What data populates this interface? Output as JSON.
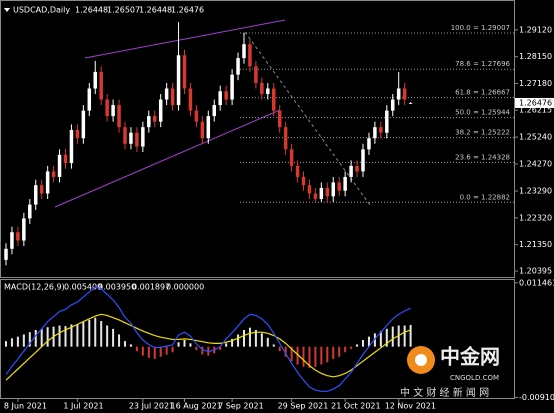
{
  "chart_data": [
    {
      "type": "candlestick",
      "symbol": "USDCAD,Daily",
      "categories": [
        null,
        null,
        "8 Jun 2021",
        null,
        null,
        null,
        null,
        null,
        null,
        null,
        null,
        null,
        "1 Jul 2021",
        null,
        null,
        null,
        null,
        null,
        null,
        null,
        null,
        null,
        null,
        "23 Jul 2021",
        null,
        null,
        null,
        null,
        null,
        null,
        "16 Aug 2021",
        null,
        null,
        null,
        null,
        null,
        null,
        null,
        "7 Sep 2021",
        null,
        null,
        null,
        null,
        null,
        null,
        null,
        null,
        null,
        "29 Sep 2021",
        null,
        null,
        null,
        null,
        null,
        null,
        null,
        null,
        "21 Oct 2021",
        null,
        null,
        null,
        null,
        null,
        null,
        null,
        null,
        "12 Nov 2021",
        null,
        null
      ],
      "open": [
        1.208,
        1.212,
        1.218,
        1.215,
        1.223,
        1.228,
        1.235,
        1.232,
        1.24,
        1.238,
        1.246,
        1.243,
        1.255,
        1.252,
        1.262,
        1.27,
        1.276,
        1.266,
        1.26,
        1.264,
        1.256,
        1.25,
        1.254,
        1.249,
        1.256,
        1.26,
        1.258,
        1.266,
        1.27,
        1.264,
        1.282,
        1.27,
        1.262,
        1.258,
        1.252,
        1.26,
        1.264,
        1.269,
        1.266,
        1.275,
        1.281,
        1.286,
        1.278,
        1.272,
        1.268,
        1.27,
        1.262,
        1.256,
        1.248,
        1.242,
        1.238,
        1.235,
        1.232,
        1.23,
        1.234,
        1.231,
        1.236,
        1.233,
        1.238,
        1.242,
        1.24,
        1.248,
        1.252,
        1.256,
        1.254,
        1.262,
        1.266,
        1.27,
        1.26448
      ],
      "high": [
        1.214,
        1.22,
        1.22,
        1.225,
        1.23,
        1.237,
        1.237,
        1.242,
        1.242,
        1.248,
        1.248,
        1.257,
        1.257,
        1.264,
        1.272,
        1.28,
        1.278,
        1.268,
        1.266,
        1.266,
        1.258,
        1.256,
        1.256,
        1.258,
        1.262,
        1.262,
        1.268,
        1.272,
        1.272,
        1.294,
        1.284,
        1.272,
        1.264,
        1.26,
        1.262,
        1.266,
        1.271,
        1.271,
        1.277,
        1.283,
        1.29007,
        1.288,
        1.28,
        1.274,
        1.272,
        1.272,
        1.264,
        1.258,
        1.25,
        1.244,
        1.24,
        1.237,
        1.234,
        1.236,
        1.236,
        1.238,
        1.238,
        1.24,
        1.244,
        1.244,
        1.25,
        1.254,
        1.258,
        1.258,
        1.264,
        1.268,
        1.276,
        1.272,
        1.26507
      ],
      "low": [
        1.206,
        1.21,
        1.213,
        1.213,
        1.221,
        1.226,
        1.23,
        1.23,
        1.236,
        1.236,
        1.241,
        1.241,
        1.25,
        1.25,
        1.26,
        1.268,
        1.264,
        1.258,
        1.258,
        1.254,
        1.248,
        1.248,
        1.247,
        1.247,
        1.254,
        1.256,
        1.256,
        1.264,
        1.262,
        1.262,
        1.268,
        1.26,
        1.256,
        1.25,
        1.25,
        1.258,
        1.262,
        1.264,
        1.264,
        1.273,
        1.279,
        1.276,
        1.27,
        1.266,
        1.266,
        1.26,
        1.254,
        1.246,
        1.24,
        1.236,
        1.233,
        1.23,
        1.229,
        1.229,
        1.22882,
        1.229,
        1.231,
        1.231,
        1.236,
        1.238,
        1.238,
        1.246,
        1.25,
        1.252,
        1.252,
        1.26,
        1.264,
        1.264,
        1.26448
      ],
      "close": [
        1.212,
        1.218,
        1.215,
        1.223,
        1.228,
        1.235,
        1.232,
        1.24,
        1.238,
        1.246,
        1.243,
        1.255,
        1.252,
        1.262,
        1.27,
        1.276,
        1.266,
        1.26,
        1.264,
        1.256,
        1.25,
        1.254,
        1.249,
        1.256,
        1.26,
        1.258,
        1.266,
        1.27,
        1.264,
        1.282,
        1.27,
        1.262,
        1.258,
        1.252,
        1.26,
        1.264,
        1.269,
        1.266,
        1.275,
        1.281,
        1.286,
        1.278,
        1.272,
        1.268,
        1.27,
        1.262,
        1.256,
        1.248,
        1.242,
        1.238,
        1.235,
        1.232,
        1.23,
        1.234,
        1.231,
        1.236,
        1.233,
        1.238,
        1.242,
        1.24,
        1.248,
        1.252,
        1.256,
        1.254,
        1.262,
        1.266,
        1.27,
        1.266,
        1.26476
      ],
      "up_color": "#ffffff",
      "down_color": "#d8392e",
      "ylim": [
        1.2018,
        1.3002
      ],
      "yticks": [
        {
          "value": 1.2912,
          "label": "1.29120"
        },
        {
          "value": 1.2815,
          "label": "1.28150"
        },
        {
          "value": 1.2718,
          "label": "1.27180"
        },
        {
          "value": 1.26215,
          "label": "1.26215"
        },
        {
          "value": 1.2524,
          "label": "1.25240"
        },
        {
          "value": 1.2427,
          "label": "1.24270"
        },
        {
          "value": 1.2329,
          "label": "1.23290"
        },
        {
          "value": 1.2232,
          "label": "1.22320"
        },
        {
          "value": 1.2135,
          "label": "1.21350"
        },
        {
          "value": 1.20395,
          "label": "1.20395"
        }
      ],
      "fib_levels": [
        {
          "value": 1.29007,
          "label": "100.0 = 1.29007"
        },
        {
          "value": 1.27696,
          "label": "78.6 = 1.27696"
        },
        {
          "value": 1.26667,
          "label": "61.8 = 1.26667"
        },
        {
          "value": 1.25944,
          "label": "50.0 = 1.25944"
        },
        {
          "value": 1.25222,
          "label": "38.2 = 1.25222"
        },
        {
          "value": 1.24328,
          "label": "23.6 = 1.24328"
        },
        {
          "value": 1.22882,
          "label": "0.0 = 1.22882"
        }
      ]
    },
    {
      "type": "macd",
      "title": "MACD(12,26,9)",
      "indicator_values": [
        {
          "value": 0.005409,
          "label": "0.005409"
        },
        {
          "value": 0.00395,
          "label": "0.003950"
        },
        {
          "value": 0.001897,
          "label": "0.001897"
        },
        {
          "value": 0,
          "label": "0.000000"
        }
      ],
      "ylim": [
        -0.0092,
        0.0116
      ],
      "yticks": [
        0.011461,
        -0.009103
      ],
      "positive_color": "#e6e6e6",
      "negative_color": "#d8392e",
      "series": [
        {
          "color": "#e6e6e6",
          "values": [
            0.001,
            0.0015,
            0.0018,
            0.0022,
            0.0026,
            0.003,
            0.0032,
            0.0035,
            0.0036,
            0.0038,
            0.0037,
            0.004,
            0.004,
            0.0044,
            0.0048,
            0.0052,
            0.0046,
            0.0038,
            0.0032,
            0.0022,
            0.001,
            0.0004,
            -0.0008,
            -0.0016,
            -0.002,
            -0.0022,
            -0.0018,
            -0.0014,
            -0.001,
            0.0008,
            0.0012,
            0.0006,
            -0.0006,
            -0.0014,
            -0.0016,
            -0.0012,
            -0.0006,
            0.0006,
            0.0014,
            0.0022,
            0.003,
            0.0034,
            0.003,
            0.0024,
            0.0016,
            0.0004,
            -0.0008,
            -0.0018,
            -0.0026,
            -0.0032,
            -0.0036,
            -0.0038,
            -0.0036,
            -0.0032,
            -0.0028,
            -0.0022,
            -0.0018,
            -0.001,
            -0.0004,
            0.0004,
            0.0012,
            0.0018,
            0.0024,
            0.0028,
            0.0032,
            0.0036,
            0.0038,
            0.0038,
            0.0039
          ]
        },
        {
          "color": "#f0e000",
          "values": [
            -0.006,
            -0.005,
            -0.004,
            -0.003,
            -0.002,
            -0.001,
            0,
            0.001,
            0.0018,
            0.0025,
            0.003,
            0.0035,
            0.004,
            0.0045,
            0.005,
            0.0055,
            0.0058,
            0.0056,
            0.0052,
            0.0048,
            0.0043,
            0.0038,
            0.0033,
            0.0028,
            0.0024,
            0.002,
            0.0017,
            0.0015,
            0.0013,
            0.0013,
            0.0014,
            0.0013,
            0.0011,
            0.0009,
            0.0007,
            0.0006,
            0.0006,
            0.0008,
            0.0011,
            0.0015,
            0.002,
            0.0024,
            0.0026,
            0.0026,
            0.0024,
            0.002,
            0.0014,
            0.0006,
            -0.0004,
            -0.0014,
            -0.0024,
            -0.0034,
            -0.0042,
            -0.0048,
            -0.0052,
            -0.0054,
            -0.0052,
            -0.0048,
            -0.0042,
            -0.0034,
            -0.0026,
            -0.0018,
            -0.001,
            -0.0002,
            0.0006,
            0.0014,
            0.002,
            0.0026,
            0.003
          ]
        },
        {
          "color": "#2f4fff",
          "values": [
            -0.005,
            -0.0035,
            -0.0022,
            -0.0008,
            0.0006,
            0.002,
            0.0032,
            0.0045,
            0.0054,
            0.0063,
            0.0067,
            0.0075,
            0.008,
            0.0089,
            0.0098,
            0.0107,
            0.0104,
            0.0094,
            0.0084,
            0.007,
            0.0053,
            0.0042,
            0.0025,
            0.0012,
            0.0004,
            -0.0002,
            -0.0001,
            0.0001,
            0.0003,
            0.0021,
            0.0026,
            0.0019,
            0.0005,
            -0.0005,
            -0.0009,
            -0.0006,
            0,
            0.0014,
            0.0025,
            0.0037,
            0.005,
            0.0058,
            0.0056,
            0.005,
            0.004,
            0.0024,
            0.0006,
            -0.0012,
            -0.003,
            -0.0046,
            -0.006,
            -0.0072,
            -0.0078,
            -0.008,
            -0.008,
            -0.0076,
            -0.007,
            -0.0058,
            -0.0046,
            -0.003,
            -0.0014,
            0,
            0.0014,
            0.0026,
            0.0038,
            0.005,
            0.0058,
            0.0064,
            0.0069
          ]
        }
      ]
    }
  ],
  "watermark": {
    "name": "中金网",
    "url": "CNGOLD.COM",
    "slogan": "中 文 财 经 新 闻 网"
  }
}
